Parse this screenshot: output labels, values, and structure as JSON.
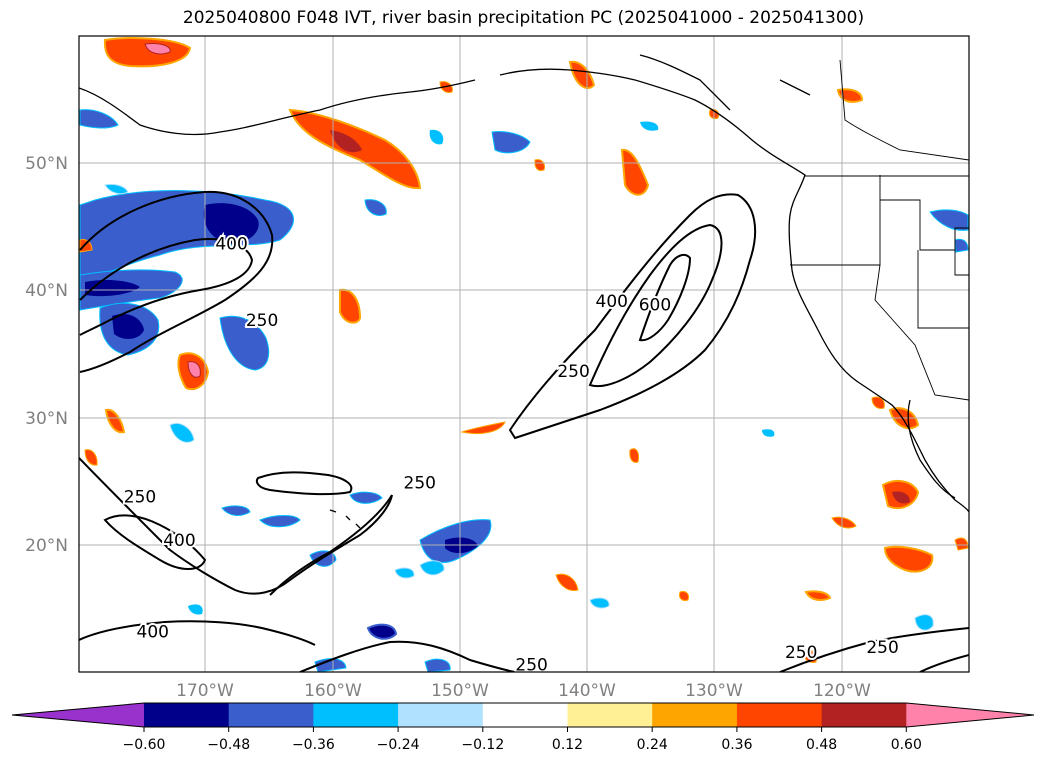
{
  "title": "2025040800 F048 IVT, river basin precipitation PC (2025041000 - 2025041300)",
  "map": {
    "lat_labels": [
      "50°N",
      "40°N",
      "30°N",
      "20°N"
    ],
    "lon_labels": [
      "170°W",
      "160°W",
      "150°W",
      "140°W",
      "130°W",
      "120°W"
    ],
    "contour_levels": [
      "250",
      "400",
      "600"
    ],
    "contour_labels": [
      {
        "text": "400",
        "lon": -168.0,
        "lat": 43.6
      },
      {
        "text": "250",
        "lon": -165.6,
        "lat": 37.6
      },
      {
        "text": "250",
        "lon": -141.1,
        "lat": 33.6
      },
      {
        "text": "400",
        "lon": -138.1,
        "lat": 39.1
      },
      {
        "text": "600",
        "lon": -134.7,
        "lat": 38.8
      },
      {
        "text": "250",
        "lon": -153.2,
        "lat": 24.8
      },
      {
        "text": "250",
        "lon": -175.2,
        "lat": 23.7
      },
      {
        "text": "400",
        "lon": -172.1,
        "lat": 20.3
      },
      {
        "text": "400",
        "lon": -174.2,
        "lat": 13.1
      },
      {
        "text": "250",
        "lon": -144.4,
        "lat": 10.5
      },
      {
        "text": "250",
        "lon": -123.2,
        "lat": 11.5
      },
      {
        "text": "250",
        "lon": -116.8,
        "lat": 11.9
      }
    ]
  },
  "colorbar": {
    "ticks": [
      "−0.60",
      "−0.48",
      "−0.36",
      "−0.24",
      "−0.12",
      "0.12",
      "0.24",
      "0.36",
      "0.48",
      "0.60"
    ],
    "colors": [
      "#9932cc",
      "#00008b",
      "#3a5fcd",
      "#00bfff",
      "#b0e2ff",
      "#ffffff",
      "#fff096",
      "#ffa500",
      "#ff4500",
      "#b22222",
      "#ff82ab"
    ]
  }
}
